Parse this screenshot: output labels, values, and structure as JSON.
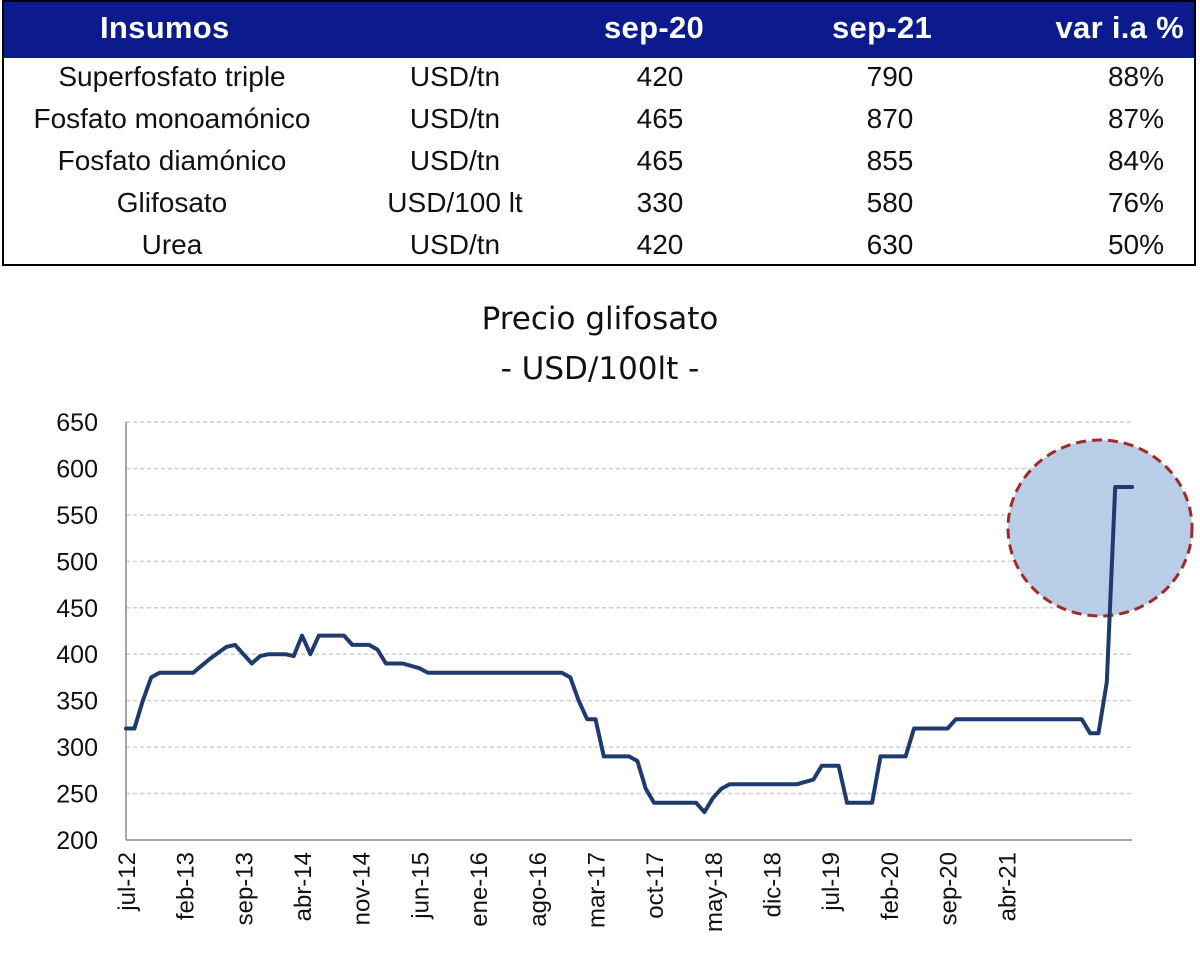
{
  "table": {
    "headers": [
      "Insumos",
      "",
      "sep-20",
      "sep-21",
      "var i.a %"
    ],
    "rows": [
      {
        "name": "Superfosfato triple",
        "unit": "USD/tn",
        "sep20": "420",
        "sep21": "790",
        "var": "88%"
      },
      {
        "name": "Fosfato monoamónico",
        "unit": "USD/tn",
        "sep20": "465",
        "sep21": "870",
        "var": "87%"
      },
      {
        "name": "Fosfato diamónico",
        "unit": "USD/tn",
        "sep20": "465",
        "sep21": "855",
        "var": "84%"
      },
      {
        "name": "Glifosato",
        "unit": "USD/100 lt",
        "sep20": "330",
        "sep21": "580",
        "var": "76%"
      },
      {
        "name": "Urea",
        "unit": "USD/tn",
        "sep20": "420",
        "sep21": "630",
        "var": "50%"
      }
    ],
    "header_color": "#0b1a8c"
  },
  "chart_data": {
    "type": "line",
    "title": "Precio glifosato",
    "subtitle": "- USD/100lt -",
    "ylim": [
      200,
      650
    ],
    "yticks": [
      200,
      250,
      300,
      350,
      400,
      450,
      500,
      550,
      600,
      650
    ],
    "xticks": [
      "jul-12",
      "feb-13",
      "sep-13",
      "abr-14",
      "nov-14",
      "jun-15",
      "ene-16",
      "ago-16",
      "mar-17",
      "oct-17",
      "may-18",
      "dic-18",
      "jul-19",
      "feb-20",
      "sep-20",
      "abr-21"
    ],
    "grid": true,
    "line_color": "#1f3a6e",
    "highlight_fill": "#b9cde6",
    "highlight_stroke": "#9e2a2a",
    "series": [
      {
        "values": [
          [
            0,
            320
          ],
          [
            1,
            320
          ],
          [
            2,
            350
          ],
          [
            3,
            375
          ],
          [
            4,
            380
          ],
          [
            6,
            380
          ],
          [
            8,
            380
          ],
          [
            10,
            395
          ],
          [
            12,
            408
          ],
          [
            13,
            410
          ],
          [
            14,
            400
          ],
          [
            15,
            390
          ],
          [
            16,
            398
          ],
          [
            17,
            400
          ],
          [
            19,
            400
          ],
          [
            20,
            398
          ],
          [
            21,
            420
          ],
          [
            22,
            400
          ],
          [
            23,
            420
          ],
          [
            25,
            420
          ],
          [
            26,
            420
          ],
          [
            27,
            410
          ],
          [
            29,
            410
          ],
          [
            30,
            405
          ],
          [
            31,
            390
          ],
          [
            33,
            390
          ],
          [
            35,
            385
          ],
          [
            36,
            380
          ],
          [
            40,
            380
          ],
          [
            45,
            380
          ],
          [
            50,
            380
          ],
          [
            52,
            380
          ],
          [
            53,
            375
          ],
          [
            54,
            350
          ],
          [
            55,
            330
          ],
          [
            56,
            330
          ],
          [
            57,
            290
          ],
          [
            59,
            290
          ],
          [
            60,
            290
          ],
          [
            61,
            285
          ],
          [
            62,
            255
          ],
          [
            63,
            240
          ],
          [
            65,
            240
          ],
          [
            68,
            240
          ],
          [
            69,
            230
          ],
          [
            70,
            245
          ],
          [
            71,
            255
          ],
          [
            72,
            260
          ],
          [
            75,
            260
          ],
          [
            80,
            260
          ],
          [
            82,
            265
          ],
          [
            83,
            280
          ],
          [
            85,
            280
          ],
          [
            86,
            240
          ],
          [
            89,
            240
          ],
          [
            90,
            290
          ],
          [
            92,
            290
          ],
          [
            93,
            290
          ],
          [
            94,
            320
          ],
          [
            96,
            320
          ],
          [
            98,
            320
          ],
          [
            99,
            330
          ],
          [
            102,
            330
          ],
          [
            110,
            330
          ],
          [
            112,
            330
          ],
          [
            114,
            330
          ],
          [
            115,
            315
          ],
          [
            116,
            315
          ],
          [
            117,
            370
          ],
          [
            118,
            580
          ],
          [
            120,
            580
          ]
        ]
      }
    ],
    "x_index_per_tick": 7
  }
}
